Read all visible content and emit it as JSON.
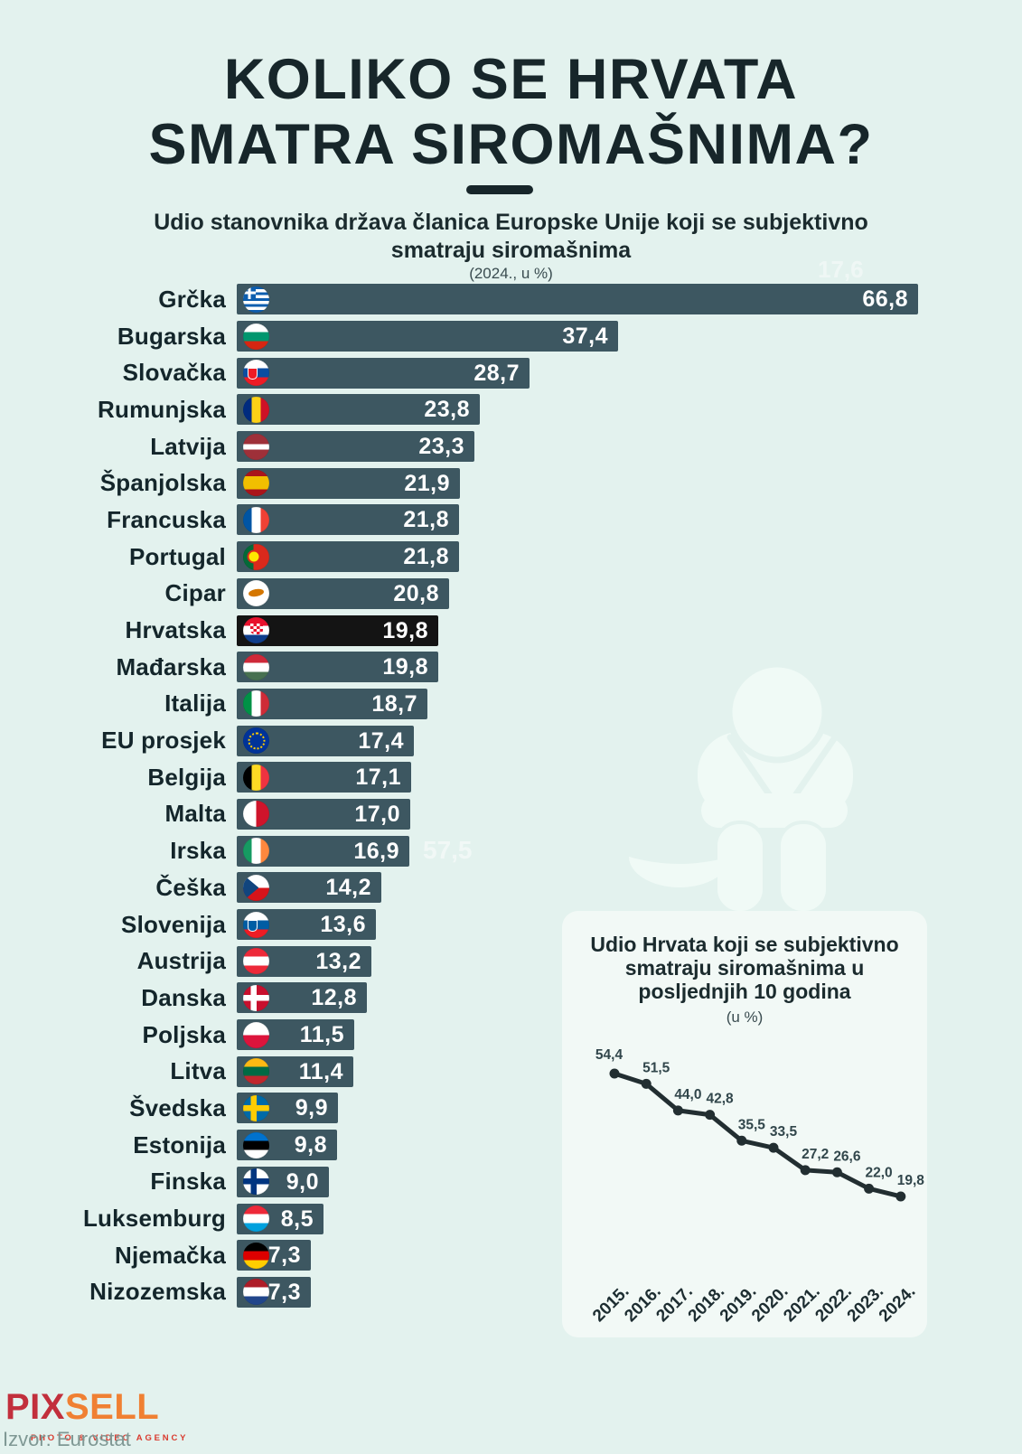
{
  "page": {
    "bg_color": "#e3f2ee",
    "bar_color": "#3d5761",
    "highlight_bar_color": "#141414",
    "text_color": "#17262a"
  },
  "header": {
    "title_lines": [
      "KOLIKO SE HRVATA",
      "SMATRA SIROMAŠNIMA?"
    ],
    "subtitle_lines": [
      "Udio stanovnika država članica Europske Unije koji se subjektivno",
      "smatraju siromašnima"
    ],
    "unit_note": "(2024., u %)"
  },
  "watermarks": {
    "top_value": "17,6",
    "mid_value": "57,5"
  },
  "chart_data": [
    {
      "type": "bar",
      "orientation": "horizontal",
      "title": "Udio stanovnika država članica Europske Unije koji se subjektivno smatraju siromašnima",
      "unit": "(2024., u %)",
      "xlim": [
        0,
        66.8
      ],
      "highlight_category": "Hrvatska",
      "rows": [
        {
          "label": "Grčka",
          "value": 66.8,
          "value_label": "66,8",
          "flag": {
            "kind": "greece",
            "blue": "#0d5eaf",
            "white": "#ffffff"
          }
        },
        {
          "label": "Bugarska",
          "value": 37.4,
          "value_label": "37,4",
          "flag": {
            "kind": "h",
            "colors": [
              "#ffffff",
              "#00966e",
              "#d62612"
            ]
          }
        },
        {
          "label": "Slovačka",
          "value": 28.7,
          "value_label": "28,7",
          "flag": {
            "kind": "h",
            "colors": [
              "#ffffff",
              "#0b4ea2",
              "#ee1c25"
            ],
            "emblem": "#ee1c25"
          }
        },
        {
          "label": "Rumunjska",
          "value": 23.8,
          "value_label": "23,8",
          "flag": {
            "kind": "v",
            "colors": [
              "#002b7f",
              "#fcd116",
              "#ce1126"
            ]
          }
        },
        {
          "label": "Latvija",
          "value": 23.3,
          "value_label": "23,3",
          "flag": {
            "kind": "h",
            "colors": [
              "#9e3039",
              "#ffffff",
              "#9e3039"
            ],
            "weights": [
              2,
              1,
              2
            ]
          }
        },
        {
          "label": "Španjolska",
          "value": 21.9,
          "value_label": "21,9",
          "flag": {
            "kind": "h",
            "colors": [
              "#aa151b",
              "#f1bf00",
              "#aa151b"
            ],
            "weights": [
              1,
              2,
              1
            ]
          }
        },
        {
          "label": "Francuska",
          "value": 21.8,
          "value_label": "21,8",
          "flag": {
            "kind": "v",
            "colors": [
              "#0055a4",
              "#ffffff",
              "#ef4135"
            ]
          }
        },
        {
          "label": "Portugal",
          "value": 21.8,
          "value_label": "21,8",
          "flag": {
            "kind": "portugal",
            "left": "#046a38",
            "right": "#da291c",
            "emblem": "#ffe900"
          }
        },
        {
          "label": "Cipar",
          "value": 20.8,
          "value_label": "20,8",
          "flag": {
            "kind": "cyprus",
            "bg": "#ffffff",
            "island": "#d47600"
          }
        },
        {
          "label": "Hrvatska",
          "value": 19.8,
          "value_label": "19,8",
          "flag": {
            "kind": "croatia",
            "colors": [
              "#e8112d",
              "#ffffff",
              "#0f3e8c"
            ],
            "checker": [
              "#e8112d",
              "#ffffff"
            ]
          },
          "highlight": true
        },
        {
          "label": "Mađarska",
          "value": 19.8,
          "value_label": "19,8",
          "flag": {
            "kind": "h",
            "colors": [
              "#ce2939",
              "#ffffff",
              "#477050"
            ]
          }
        },
        {
          "label": "Italija",
          "value": 18.7,
          "value_label": "18,7",
          "flag": {
            "kind": "v",
            "colors": [
              "#009246",
              "#ffffff",
              "#ce2b37"
            ]
          }
        },
        {
          "label": "EU prosjek",
          "value": 17.4,
          "value_label": "17,4",
          "flag": {
            "kind": "eu",
            "bg": "#003399",
            "stars": "#ffcc00"
          }
        },
        {
          "label": "Belgija",
          "value": 17.1,
          "value_label": "17,1",
          "flag": {
            "kind": "v",
            "colors": [
              "#000000",
              "#fdda24",
              "#ef3340"
            ]
          }
        },
        {
          "label": "Malta",
          "value": 17.0,
          "value_label": "17,0",
          "flag": {
            "kind": "v",
            "colors": [
              "#ffffff",
              "#cf142b"
            ]
          }
        },
        {
          "label": "Irska",
          "value": 16.9,
          "value_label": "16,9",
          "flag": {
            "kind": "v",
            "colors": [
              "#169b62",
              "#ffffff",
              "#ff883e"
            ]
          }
        },
        {
          "label": "Češka",
          "value": 14.2,
          "value_label": "14,2",
          "flag": {
            "kind": "czech",
            "top": "#ffffff",
            "bottom": "#d7141a",
            "triangle": "#11457e"
          }
        },
        {
          "label": "Slovenija",
          "value": 13.6,
          "value_label": "13,6",
          "flag": {
            "kind": "h",
            "colors": [
              "#ffffff",
              "#005da4",
              "#ed1c24"
            ],
            "emblem": "#005da4"
          }
        },
        {
          "label": "Austrija",
          "value": 13.2,
          "value_label": "13,2",
          "flag": {
            "kind": "h",
            "colors": [
              "#ed2939",
              "#ffffff",
              "#ed2939"
            ]
          }
        },
        {
          "label": "Danska",
          "value": 12.8,
          "value_label": "12,8",
          "flag": {
            "kind": "nordic",
            "bg": "#c8102e",
            "cross": "#ffffff"
          }
        },
        {
          "label": "Poljska",
          "value": 11.5,
          "value_label": "11,5",
          "flag": {
            "kind": "h",
            "colors": [
              "#ffffff",
              "#dc143c"
            ]
          }
        },
        {
          "label": "Litva",
          "value": 11.4,
          "value_label": "11,4",
          "flag": {
            "kind": "h",
            "colors": [
              "#fdb913",
              "#006a44",
              "#c1272d"
            ]
          }
        },
        {
          "label": "Švedska",
          "value": 9.9,
          "value_label": "9,9",
          "flag": {
            "kind": "nordic",
            "bg": "#006aa7",
            "cross": "#fecc02"
          }
        },
        {
          "label": "Estonija",
          "value": 9.8,
          "value_label": "9,8",
          "flag": {
            "kind": "h",
            "colors": [
              "#0072ce",
              "#000000",
              "#ffffff"
            ]
          }
        },
        {
          "label": "Finska",
          "value": 9.0,
          "value_label": "9,0",
          "flag": {
            "kind": "nordic",
            "bg": "#ffffff",
            "cross": "#003580"
          }
        },
        {
          "label": "Luksemburg",
          "value": 8.5,
          "value_label": "8,5",
          "flag": {
            "kind": "h",
            "colors": [
              "#ed2939",
              "#ffffff",
              "#00a1de"
            ]
          }
        },
        {
          "label": "Njemačka",
          "value": 7.3,
          "value_label": "7,3",
          "flag": {
            "kind": "h",
            "colors": [
              "#000000",
              "#dd0000",
              "#ffce00"
            ]
          }
        },
        {
          "label": "Nizozemska",
          "value": 7.3,
          "value_label": "7,3",
          "flag": {
            "kind": "h",
            "colors": [
              "#ae1c28",
              "#ffffff",
              "#21468b"
            ]
          }
        }
      ]
    },
    {
      "type": "line",
      "title_lines": [
        "Udio Hrvata koji se subjektivno",
        "smatraju siromašnima u",
        "posljednjih 10 godina"
      ],
      "title": "Udio Hrvata koji se subjektivno smatraju siromašnima u posljednjih 10 godina",
      "unit": "(u %)",
      "x": [
        "2015.",
        "2016.",
        "2017.",
        "2018.",
        "2019.",
        "2020.",
        "2021.",
        "2022.",
        "2023.",
        "2024."
      ],
      "values": [
        54.4,
        51.5,
        44.0,
        42.8,
        35.5,
        33.5,
        27.2,
        26.6,
        22.0,
        19.8
      ],
      "value_labels": [
        "54,4",
        "51,5",
        "44,0",
        "42,8",
        "35,5",
        "33,5",
        "27,2",
        "26,6",
        "22,0",
        "19,8"
      ],
      "ylim": [
        0,
        60
      ],
      "grid": false,
      "line_color": "#222e31"
    }
  ],
  "footer": {
    "logo_part1": "PIX",
    "logo_part2": "SELL",
    "logo_tagline": "PHOTO & VIDEO AGENCY",
    "source": "Izvor: Eurostat"
  }
}
